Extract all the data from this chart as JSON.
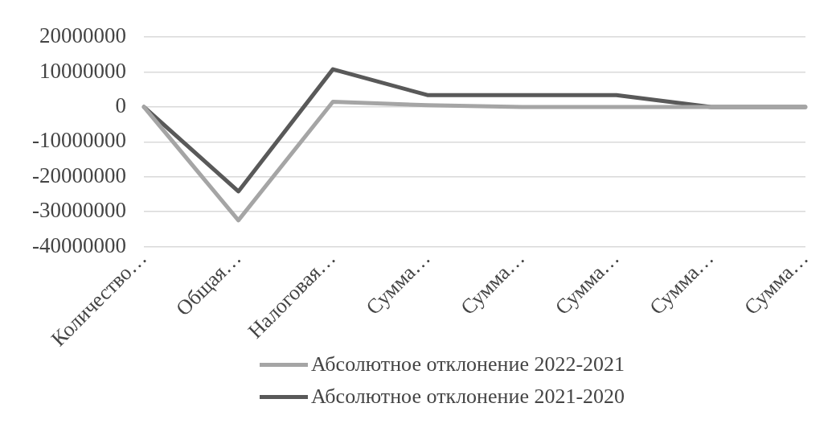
{
  "chart_data": {
    "type": "line",
    "categories": [
      "Количество…",
      "Общая…",
      "Налоговая…",
      "Сумма…",
      "Сумма…",
      "Сумма…",
      "Сумма…",
      "Сумма…"
    ],
    "series": [
      {
        "name": "Абсолютное отклонение 2022-2021",
        "color": "#a5a5a5",
        "values": [
          0,
          -32500000,
          1500000,
          500000,
          0,
          0,
          0,
          0
        ]
      },
      {
        "name": "Абсолютное отклонение 2021-2020",
        "color": "#595959",
        "values": [
          0,
          -24200000,
          10800000,
          3400000,
          3400000,
          3400000,
          0,
          0
        ]
      }
    ],
    "ylim": [
      -40000000,
      20000000
    ],
    "yticks": [
      -40000000,
      -30000000,
      -20000000,
      -10000000,
      0,
      10000000,
      20000000
    ],
    "grid": "y",
    "legend": "bottom",
    "marker": "none",
    "line_style": "solid"
  }
}
